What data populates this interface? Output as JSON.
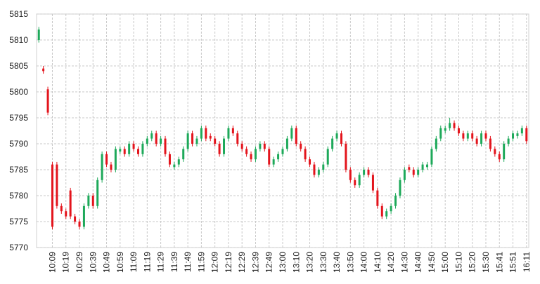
{
  "chart_data": {
    "type": "candlestick",
    "categories": [
      null,
      null,
      null,
      "10:09",
      null,
      null,
      "10:19",
      null,
      null,
      "10:29",
      null,
      null,
      "10:39",
      null,
      null,
      "10:49",
      null,
      null,
      "10:59",
      null,
      null,
      "11:09",
      null,
      null,
      "11:19",
      null,
      null,
      "11:29",
      null,
      null,
      "11:39",
      null,
      null,
      "11:49",
      null,
      null,
      "11:59",
      null,
      null,
      "12:09",
      null,
      null,
      "12:19",
      null,
      null,
      "12:29",
      null,
      null,
      "12:39",
      null,
      null,
      "12:49",
      null,
      null,
      "13:00",
      null,
      null,
      "13:10",
      null,
      null,
      "13:20",
      null,
      null,
      "13:30",
      null,
      null,
      "13:40",
      null,
      null,
      "13:50",
      null,
      null,
      "14:00",
      null,
      null,
      "14:10",
      null,
      null,
      "14:20",
      null,
      null,
      "14:30",
      null,
      null,
      "14:40",
      null,
      null,
      "14:50",
      null,
      null,
      "15:00",
      null,
      null,
      "15:10",
      null,
      null,
      "15:20",
      null,
      null,
      "15:30",
      null,
      null,
      "15:41",
      null,
      null,
      "15:51",
      null,
      null,
      "16:11"
    ],
    "open": [
      5810,
      5804.5,
      5800.5,
      5786,
      5786,
      5778,
      5777,
      5781,
      5776,
      5775,
      5774,
      5778,
      5780,
      5778,
      5783,
      5788,
      5786,
      5785,
      5788.5,
      5789,
      5788,
      5790,
      5789,
      5788,
      5790,
      5791,
      5792,
      5790,
      5791,
      5788,
      5785.5,
      5786,
      5787,
      5789,
      5792,
      5790,
      5791,
      5793,
      5791.5,
      5791,
      5790,
      5788,
      5791,
      5793,
      5792,
      5790,
      5789,
      5788,
      5787,
      5789,
      5790,
      5789,
      5786,
      5787,
      5788,
      5789,
      5791,
      5793,
      5790,
      5789,
      5787,
      5786,
      5784,
      5785,
      5786,
      5789,
      5791,
      5792,
      5790,
      5785,
      5783,
      5782,
      5784,
      5785,
      5784,
      5781,
      5778,
      5776,
      5777,
      5778,
      5780,
      5783,
      5785.5,
      5785,
      5784,
      5785,
      5785.5,
      5786,
      5789,
      5791,
      5792.5,
      5793,
      5794,
      5793,
      5792,
      5791,
      5792,
      5791,
      5790,
      5792,
      5791,
      5789,
      5788,
      5787,
      5790,
      5791,
      5791.5,
      5792,
      5793
    ],
    "high": [
      5812.5,
      5805,
      5801,
      5786.5,
      5786.5,
      5778.5,
      5777.5,
      5781.5,
      5776.5,
      5775.5,
      5778.5,
      5780.5,
      5780.5,
      5783.5,
      5788.5,
      5788.5,
      5786.5,
      5789.5,
      5789.5,
      5789.5,
      5790.5,
      5790.5,
      5789.5,
      5790.5,
      5791.5,
      5792.5,
      5792.5,
      5791.5,
      5791.5,
      5788.5,
      5786.5,
      5787.5,
      5789.5,
      5792.5,
      5792.5,
      5791.5,
      5793.5,
      5793.5,
      5792,
      5791.5,
      5790.5,
      5791.5,
      5793.5,
      5793.5,
      5792.5,
      5790.5,
      5789.5,
      5788.5,
      5789.5,
      5790.5,
      5790.5,
      5789.5,
      5787.5,
      5788.5,
      5789.5,
      5791.5,
      5793.5,
      5793.5,
      5790.5,
      5789.5,
      5787.5,
      5786.5,
      5785.5,
      5786.5,
      5789.5,
      5791.5,
      5792.5,
      5792.5,
      5790.5,
      5785.5,
      5783.5,
      5784.5,
      5785.5,
      5785.5,
      5784.5,
      5781.5,
      5778.5,
      5777.5,
      5778.5,
      5780.5,
      5783.5,
      5785.5,
      5786,
      5785.5,
      5785.5,
      5786.5,
      5786.5,
      5789.5,
      5791.5,
      5793.5,
      5793.5,
      5795,
      5794.5,
      5793.5,
      5792.5,
      5792.5,
      5792.5,
      5791.5,
      5792.5,
      5792.5,
      5791.5,
      5789.5,
      5788.5,
      5790.5,
      5791.5,
      5792.5,
      5792.5,
      5793.5,
      5793.5
    ],
    "low": [
      5809.5,
      5803.5,
      5795.5,
      5773.5,
      5777.5,
      5776.5,
      5775.5,
      5775.5,
      5774.5,
      5773.5,
      5773.5,
      5777.5,
      5777.5,
      5777.5,
      5782.5,
      5785.5,
      5784.5,
      5784.5,
      5788,
      5787.5,
      5787.5,
      5788.5,
      5787.5,
      5787.5,
      5789.5,
      5790.5,
      5789.5,
      5789.5,
      5787.5,
      5785.5,
      5785,
      5785.5,
      5786.5,
      5788.5,
      5789.5,
      5789.5,
      5790.5,
      5790.5,
      5790.5,
      5789.5,
      5787.5,
      5787.5,
      5790.5,
      5791.5,
      5789.5,
      5788.5,
      5787.5,
      5786.5,
      5786.5,
      5788.5,
      5788.5,
      5785.5,
      5785.5,
      5786.5,
      5787.5,
      5788.5,
      5790.5,
      5789.5,
      5788.5,
      5786.5,
      5785.5,
      5783.5,
      5783.5,
      5784.5,
      5785.5,
      5788.5,
      5790.5,
      5789.5,
      5784.5,
      5782.5,
      5781.5,
      5781.5,
      5783.5,
      5783.5,
      5780.5,
      5777.5,
      5775.5,
      5775.5,
      5776.5,
      5777.5,
      5779.5,
      5782.5,
      5784.5,
      5783.5,
      5783.5,
      5784.5,
      5785,
      5785.5,
      5788.5,
      5790.5,
      5792,
      5792.5,
      5792.5,
      5791.5,
      5790.5,
      5790.5,
      5790.5,
      5789.5,
      5789.5,
      5790.5,
      5788.5,
      5787.5,
      5786.5,
      5786.5,
      5789.5,
      5790.5,
      5791,
      5791.5,
      5790
    ],
    "close": [
      5812,
      5804,
      5796,
      5774,
      5778,
      5777,
      5776,
      5776,
      5775,
      5774,
      5778,
      5780,
      5778,
      5783,
      5788,
      5786,
      5785,
      5789,
      5789,
      5788,
      5790,
      5789,
      5788,
      5790,
      5791,
      5792,
      5790,
      5791,
      5788,
      5786,
      5786,
      5787,
      5789,
      5792,
      5790,
      5791,
      5793,
      5791,
      5791,
      5790,
      5788,
      5791,
      5793,
      5792,
      5790,
      5789,
      5788,
      5787,
      5789,
      5790,
      5789,
      5786,
      5787,
      5788,
      5789,
      5791,
      5793,
      5790,
      5789,
      5787,
      5786,
      5784,
      5785,
      5786,
      5789,
      5791,
      5792,
      5790,
      5785,
      5783,
      5782,
      5784,
      5785,
      5784,
      5781,
      5778,
      5776,
      5777,
      5778,
      5780,
      5783,
      5785,
      5785,
      5784,
      5785,
      5786,
      5786,
      5789,
      5791,
      5793,
      5793,
      5794,
      5793,
      5792,
      5791,
      5792,
      5791,
      5790,
      5792,
      5791,
      5789,
      5788,
      5787,
      5790,
      5791,
      5792,
      5792,
      5793,
      5790.5
    ],
    "up_color": "#1ea95a",
    "down_color": "#e3141c",
    "ylim": [
      5770,
      5815
    ],
    "yticks": [
      5770,
      5775,
      5780,
      5785,
      5790,
      5795,
      5800,
      5805,
      5810,
      5815
    ],
    "grid": true
  }
}
